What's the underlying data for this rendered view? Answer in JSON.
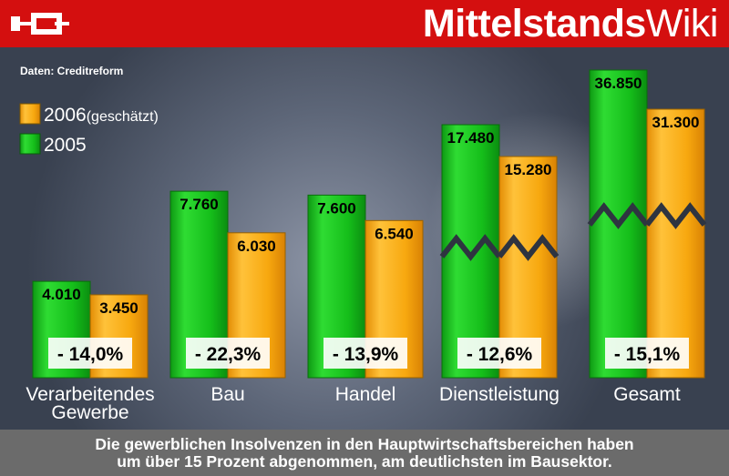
{
  "header": {
    "brand_bold": "Mittelstands",
    "brand_regular": "Wiki"
  },
  "source_text": "Daten: Creditreform",
  "legend": [
    {
      "label": "2006",
      "note": "(geschätzt)",
      "color": "#f7a80f"
    },
    {
      "label": "2005",
      "note": "",
      "color": "#19c31e"
    }
  ],
  "caption": {
    "line1": "Die gewerblichen Insolvenzen in den Hauptwirtschaftsbereichen haben",
    "line2": "um über 15 Prozent abgenommen, am deutlichsten im Bausektor."
  },
  "colors": {
    "green": "#19c31e",
    "orange": "#f7a80f",
    "header_red": "#d40f0f",
    "footer_grey": "#6b6b6b"
  },
  "chart_data": {
    "type": "bar",
    "categories": [
      "Verarbeitendes Gewerbe",
      "Bau",
      "Handel",
      "Dienstleistung",
      "Gesamt"
    ],
    "category_lines": [
      [
        "Verarbeitendes",
        "Gewerbe"
      ],
      [
        "Bau"
      ],
      [
        "Handel"
      ],
      [
        "Dienstleistung"
      ],
      [
        "Gesamt"
      ]
    ],
    "series": [
      {
        "name": "2005",
        "values": [
          4010,
          7760,
          7600,
          17480,
          36850
        ],
        "labels": [
          "4.010",
          "7.760",
          "7.600",
          "17.480",
          "36.850"
        ]
      },
      {
        "name": "2006 (geschätzt)",
        "values": [
          3450,
          6030,
          6540,
          15280,
          31300
        ],
        "labels": [
          "3.450",
          "6.030",
          "6.540",
          "15.280",
          "31.300"
        ]
      }
    ],
    "change_labels": [
      "- 14,0%",
      "- 22,3%",
      "- 13,9%",
      "- 12,6%",
      "- 15,1%"
    ],
    "broken_axis_categories": [
      3,
      4
    ],
    "legend_position": "top-left",
    "grid": false
  }
}
